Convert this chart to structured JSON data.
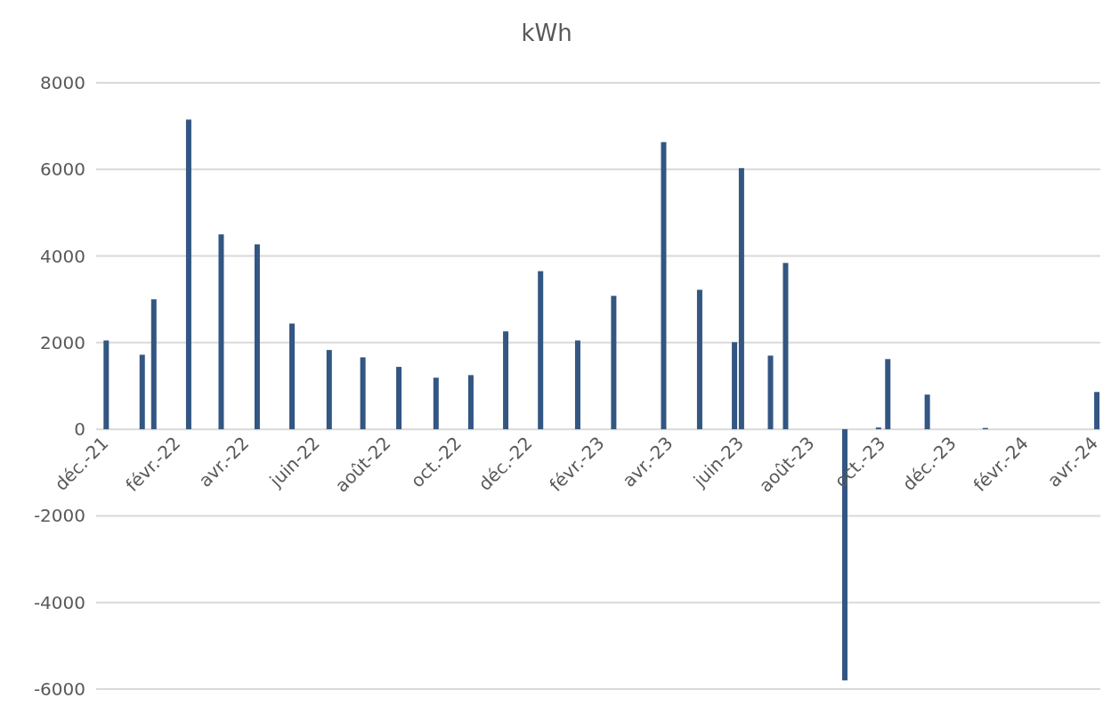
{
  "chart_data": {
    "type": "bar",
    "title": "kWh",
    "x": [
      "2021-12-02",
      "2022-01-02",
      "2022-01-12",
      "2022-02-11",
      "2022-03-11",
      "2022-04-11",
      "2022-05-11",
      "2022-06-12",
      "2022-07-11",
      "2022-08-11",
      "2022-09-12",
      "2022-10-12",
      "2022-11-11",
      "2022-12-11",
      "2023-01-12",
      "2023-02-12",
      "2023-03-27",
      "2023-04-27",
      "2023-05-27",
      "2023-06-02",
      "2023-06-27",
      "2023-07-10",
      "2023-08-30",
      "2023-09-28",
      "2023-10-06",
      "2023-11-09",
      "2023-12-29",
      "2024-04-03"
    ],
    "values": [
      2050,
      1720,
      3000,
      7150,
      4500,
      4270,
      2440,
      1830,
      1660,
      1440,
      1190,
      1250,
      2260,
      3650,
      2050,
      3080,
      6630,
      3220,
      2010,
      6030,
      1700,
      3840,
      -5800,
      40,
      1620,
      800,
      30,
      860
    ],
    "color": "#335682",
    "xlim": [
      "2021-12-01",
      "2024-04-06"
    ],
    "xticks": [
      {
        "value": "2021-12-01",
        "label": "déc.-21"
      },
      {
        "value": "2022-02-01",
        "label": "févr.-22"
      },
      {
        "value": "2022-04-01",
        "label": "avr.-22"
      },
      {
        "value": "2022-06-01",
        "label": "juin-22"
      },
      {
        "value": "2022-08-01",
        "label": "août-22"
      },
      {
        "value": "2022-10-01",
        "label": "oct.-22"
      },
      {
        "value": "2022-12-01",
        "label": "déc.-22"
      },
      {
        "value": "2023-02-01",
        "label": "févr.-23"
      },
      {
        "value": "2023-04-01",
        "label": "avr.-23"
      },
      {
        "value": "2023-06-01",
        "label": "juin-23"
      },
      {
        "value": "2023-08-01",
        "label": "août-23"
      },
      {
        "value": "2023-10-01",
        "label": "oct.-23"
      },
      {
        "value": "2023-12-01",
        "label": "déc.-23"
      },
      {
        "value": "2024-02-01",
        "label": "févr.-24"
      },
      {
        "value": "2024-04-01",
        "label": "avr.-24"
      }
    ],
    "ylim": [
      -6000,
      8000
    ],
    "yticks": [
      -6000,
      -4000,
      -2000,
      0,
      2000,
      4000,
      6000,
      8000
    ],
    "grid": "y"
  }
}
